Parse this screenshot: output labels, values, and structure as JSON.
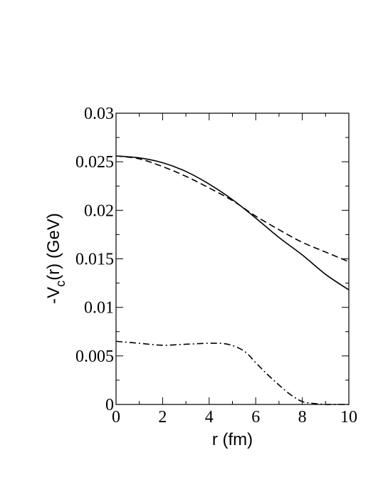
{
  "chart_data": {
    "type": "line",
    "xlabel": "r (fm)",
    "ylabel": {
      "prefix": "-V",
      "subscript": "c",
      "suffix": "(r) (GeV)"
    },
    "xlim": [
      0,
      10
    ],
    "ylim": [
      0,
      0.03
    ],
    "x_ticks": [
      0,
      2,
      4,
      6,
      8,
      10
    ],
    "x_tick_labels": [
      "0",
      "2",
      "4",
      "6",
      "8",
      "10"
    ],
    "y_ticks": [
      0,
      0.005,
      0.01,
      0.015,
      0.02,
      0.025,
      0.03
    ],
    "y_tick_labels": [
      "0",
      "0.005",
      "0.01",
      "0.015",
      "0.02",
      "0.025",
      "0.03"
    ],
    "grid": false,
    "legend": "none",
    "series": [
      {
        "style": "solid",
        "color": "#000000",
        "x": [
          0,
          1,
          2,
          3,
          4,
          5,
          6,
          7,
          8,
          9,
          10
        ],
        "y": [
          0.0256,
          0.0254,
          0.0249,
          0.024,
          0.0227,
          0.0211,
          0.0192,
          0.0172,
          0.0154,
          0.0134,
          0.0118
        ]
      },
      {
        "style": "dashed",
        "color": "#000000",
        "x": [
          0,
          1,
          2,
          3,
          4,
          5,
          6,
          7,
          8,
          9,
          10
        ],
        "y": [
          0.0256,
          0.0253,
          0.0245,
          0.0235,
          0.0223,
          0.021,
          0.0194,
          0.018,
          0.0167,
          0.0157,
          0.0147
        ]
      },
      {
        "style": "dashdot",
        "color": "#000000",
        "x": [
          0,
          1,
          2,
          3,
          4,
          4.8,
          5.5,
          6,
          6.5,
          7,
          7.5,
          8,
          8.5,
          9,
          9.5,
          10
        ],
        "y": [
          0.0065,
          0.0063,
          0.0061,
          0.0062,
          0.0063,
          0.0062,
          0.0055,
          0.0043,
          0.0031,
          0.002,
          0.001,
          0.0003,
          0.0001,
          0.0,
          0.0,
          0.0
        ]
      }
    ]
  }
}
